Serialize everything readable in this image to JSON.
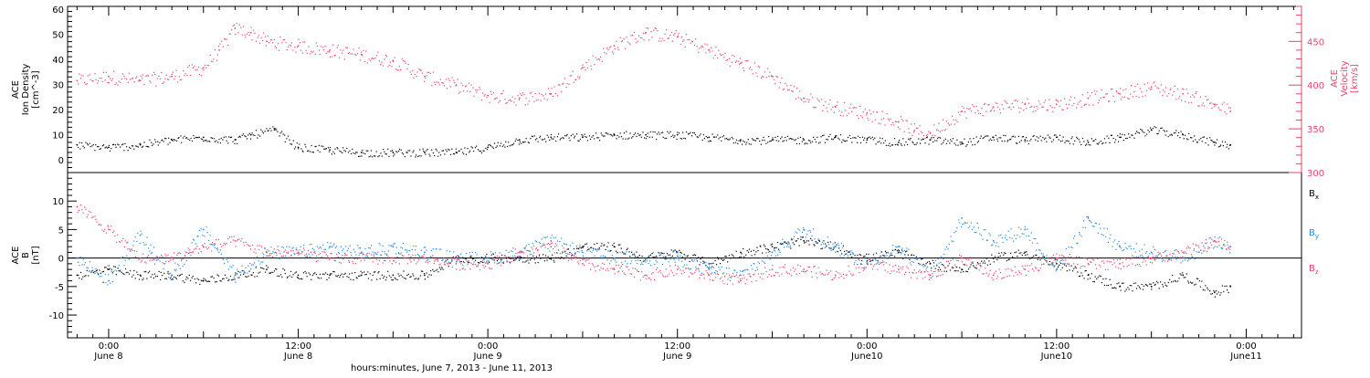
{
  "chart_data": [
    {
      "type": "scatter",
      "panel": "top",
      "ylabel_lines": [
        "ACE",
        "Ion Density",
        "[cm^-3]"
      ],
      "ylim": [
        -5,
        61
      ],
      "yticks": [
        0,
        10,
        20,
        30,
        40,
        50,
        60
      ],
      "y2label_lines": [
        "ACE",
        "Velocity",
        "[km/s]"
      ],
      "y2lim": [
        300,
        490
      ],
      "y2ticks": [
        300,
        350,
        400,
        450
      ],
      "series": [
        {
          "axis": "left",
          "color": "#000000",
          "x": [
            -2.0,
            0.0,
            2.0,
            4.0,
            6.0,
            8.0,
            9.0,
            10.5,
            12.0,
            14.0,
            16.0,
            18.0,
            20.0,
            22.0,
            24.0,
            26.0,
            28.0,
            30.0,
            32.0,
            34.0,
            36.0,
            38.0,
            40.0,
            42.0,
            44.0,
            46.0,
            48.0,
            50.0,
            52.0,
            54.0,
            56.0,
            58.0,
            60.0,
            62.0,
            64.0,
            66.0,
            68.0,
            70.0,
            71.0
          ],
          "y": [
            6,
            5,
            6,
            8,
            9,
            8,
            10,
            12,
            5,
            4,
            3,
            3,
            3,
            3,
            5,
            8,
            9,
            9,
            10,
            10,
            10,
            9,
            8,
            8,
            8,
            9,
            8,
            7,
            8,
            7,
            9,
            8,
            9,
            7,
            9,
            12,
            10,
            7,
            6
          ]
        },
        {
          "axis": "right",
          "color": "#e6446b",
          "x": [
            -2.0,
            0.0,
            2.0,
            4.0,
            6.0,
            7.0,
            8.0,
            9.0,
            10.0,
            12.0,
            14.0,
            16.0,
            18.0,
            20.0,
            22.0,
            24.0,
            26.0,
            28.0,
            30.0,
            32.0,
            34.0,
            36.0,
            38.0,
            40.0,
            42.0,
            44.0,
            46.0,
            48.0,
            50.0,
            51.0,
            52.0,
            54.0,
            56.0,
            58.0,
            60.0,
            62.0,
            64.0,
            66.0,
            68.0,
            70.0,
            71.0
          ],
          "y": [
            405,
            410,
            405,
            410,
            420,
            440,
            465,
            460,
            450,
            445,
            440,
            435,
            428,
            410,
            400,
            388,
            385,
            390,
            420,
            445,
            460,
            455,
            440,
            425,
            410,
            385,
            375,
            368,
            358,
            348,
            345,
            370,
            375,
            378,
            378,
            385,
            390,
            398,
            390,
            378,
            370
          ]
        }
      ]
    },
    {
      "type": "scatter",
      "panel": "bottom",
      "ylabel_lines": [
        "ACE",
        "B",
        "[nT]"
      ],
      "ylim": [
        -14,
        15
      ],
      "yticks": [
        -10,
        -5,
        0,
        5,
        10
      ],
      "zero_line": true,
      "xticks": [
        {
          "x": 0,
          "time": "0:00",
          "date": "June 8"
        },
        {
          "x": 12,
          "time": "12:00",
          "date": "June 8"
        },
        {
          "x": 24,
          "time": "0:00",
          "date": "June 9"
        },
        {
          "x": 36,
          "time": "12:00",
          "date": "June 9"
        },
        {
          "x": 48,
          "time": "0:00",
          "date": "June10"
        },
        {
          "x": 60,
          "time": "12:00",
          "date": "June10"
        },
        {
          "x": 72,
          "time": "0:00",
          "date": "June11"
        }
      ],
      "xlim": [
        -2.6,
        75.5
      ],
      "xlabel": "hours:minutes, June  7, 2013 - June 11, 2013",
      "series": [
        {
          "name": "B",
          "sub": "x",
          "color": "#000000",
          "x": [
            -2.0,
            0.0,
            2.0,
            4.0,
            6.0,
            8.0,
            10.0,
            12.0,
            14.0,
            16.0,
            18.0,
            20.0,
            22.0,
            24.0,
            26.0,
            28.0,
            30.0,
            32.0,
            34.0,
            36.0,
            38.0,
            40.0,
            42.0,
            44.0,
            46.0,
            48.0,
            50.0,
            52.0,
            54.0,
            56.0,
            58.0,
            60.0,
            62.0,
            64.0,
            66.0,
            68.0,
            70.0,
            71.0
          ],
          "y": [
            -3,
            -2,
            -3,
            -3,
            -4,
            -3,
            -2,
            -3,
            -3,
            -3,
            -3,
            -3,
            0,
            0,
            0,
            0,
            2,
            2,
            0,
            1,
            -1,
            1,
            2,
            3,
            2,
            0,
            1,
            -1,
            -2,
            0,
            1,
            -1,
            -3,
            -5,
            -5,
            -3,
            -6,
            -5
          ]
        },
        {
          "name": "B",
          "sub": "y",
          "color": "#1e88e5",
          "x": [
            -2.0,
            0.0,
            2.0,
            4.0,
            6.0,
            8.0,
            10.0,
            12.0,
            14.0,
            16.0,
            18.0,
            20.0,
            22.0,
            24.0,
            26.0,
            28.0,
            30.0,
            32.0,
            34.0,
            36.0,
            38.0,
            40.0,
            42.0,
            44.0,
            46.0,
            48.0,
            50.0,
            52.0,
            54.0,
            56.0,
            58.0,
            60.0,
            62.0,
            64.0,
            66.0,
            68.0,
            70.0,
            71.0
          ],
          "y": [
            0,
            -4,
            4,
            -3,
            5,
            -3,
            1,
            1,
            2,
            1,
            2,
            1,
            0,
            0,
            1,
            3,
            1,
            0,
            0,
            0,
            -2,
            -3,
            1,
            5,
            2,
            -1,
            2,
            -3,
            7,
            3,
            5,
            -2,
            7,
            2,
            1,
            0,
            3,
            2
          ]
        },
        {
          "name": "B",
          "sub": "z",
          "color": "#e6446b",
          "x": [
            -2.0,
            0.0,
            2.0,
            4.0,
            6.0,
            8.0,
            10.0,
            12.0,
            14.0,
            16.0,
            18.0,
            20.0,
            22.0,
            24.0,
            26.0,
            28.0,
            30.0,
            32.0,
            34.0,
            36.0,
            38.0,
            40.0,
            42.0,
            44.0,
            46.0,
            48.0,
            50.0,
            52.0,
            54.0,
            56.0,
            58.0,
            60.0,
            62.0,
            64.0,
            66.0,
            68.0,
            70.0,
            71.0
          ],
          "y": [
            9,
            5,
            0,
            0,
            2,
            3,
            1,
            1,
            0,
            0,
            0,
            0,
            -1,
            -1,
            1,
            2,
            -1,
            -2,
            -3,
            -2,
            -3,
            -4,
            -2,
            -2,
            -3,
            -1,
            -2,
            -3,
            0,
            -3,
            -2,
            0,
            -1,
            -1,
            0,
            1,
            3,
            2
          ]
        }
      ]
    }
  ]
}
